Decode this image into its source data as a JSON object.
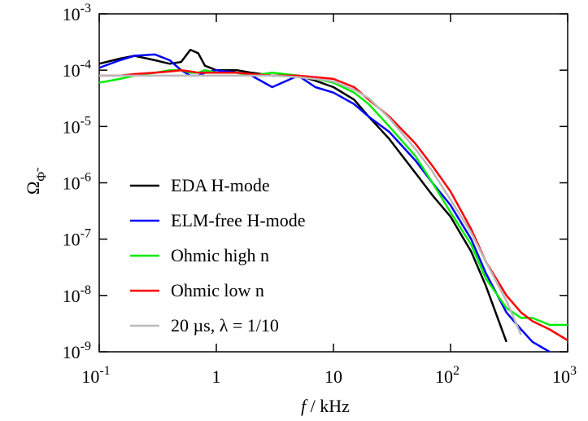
{
  "chart_data": {
    "type": "line",
    "xlabel": {
      "symbol": "f",
      "unit": " / kHz"
    },
    "ylabel": {
      "symbol": "Ω",
      "subscript": "Φ̃"
    },
    "log_x": true,
    "log_y": true,
    "xlim": [
      0.1,
      1000
    ],
    "ylim": [
      1e-09,
      0.001
    ],
    "xticks": [
      {
        "value": 0.1,
        "label": "10",
        "exponent": "-1"
      },
      1,
      10,
      {
        "value": 100,
        "label": "10",
        "exponent": "2"
      },
      {
        "value": 1000,
        "label": "10",
        "exponent": "3"
      }
    ],
    "yticks": [
      {
        "value": 1e-09,
        "label": "10",
        "exponent": "-9"
      },
      {
        "value": 1e-08,
        "label": "10",
        "exponent": "-8"
      },
      {
        "value": 1e-07,
        "label": "10",
        "exponent": "-7"
      },
      {
        "value": 1e-06,
        "label": "10",
        "exponent": "-6"
      },
      {
        "value": 1e-05,
        "label": "10",
        "exponent": "-5"
      },
      {
        "value": 0.0001,
        "label": "10",
        "exponent": "-4"
      },
      {
        "value": 0.001,
        "label": "10",
        "exponent": "-3"
      }
    ],
    "legend": "lower left",
    "x": [
      0.1,
      0.15,
      0.2,
      0.3,
      0.4,
      0.5,
      0.6,
      0.7,
      0.8,
      1,
      1.5,
      2,
      3,
      5,
      7,
      10,
      15,
      20,
      30,
      50,
      70,
      100,
      150,
      200,
      300,
      400,
      500,
      700,
      1000
    ],
    "series": [
      {
        "name": "EDA H-mode",
        "color": "#000000",
        "values": [
          0.00013,
          0.00016,
          0.00018,
          0.00015,
          0.00013,
          0.00014,
          0.00023,
          0.0002,
          0.00012,
          0.0001,
          0.0001,
          9e-05,
          8e-05,
          8e-05,
          6.5e-05,
          5e-05,
          3e-05,
          1.5e-05,
          6e-06,
          1.5e-06,
          6e-07,
          2.5e-07,
          6e-08,
          1.5e-08,
          1.5e-09,
          null,
          null,
          null,
          null
        ]
      },
      {
        "name": "ELM-free H-mode",
        "color": "#0000ff",
        "values": [
          0.00011,
          0.00015,
          0.00018,
          0.00019,
          0.00015,
          0.0001,
          8e-05,
          8e-05,
          9e-05,
          0.0001,
          9e-05,
          8e-05,
          5e-05,
          8e-05,
          5e-05,
          4e-05,
          2.5e-05,
          1.5e-05,
          8e-06,
          2.5e-06,
          1e-06,
          4e-07,
          1e-07,
          2.5e-08,
          5e-09,
          2.5e-09,
          1.5e-09,
          1e-09,
          null
        ]
      },
      {
        "name": "Ohmic high n",
        "color": "#00ee00",
        "values": [
          6e-05,
          7e-05,
          8e-05,
          9e-05,
          0.0001,
          0.0001,
          9e-05,
          9e-05,
          0.0001,
          9e-05,
          9e-05,
          8e-05,
          9e-05,
          8e-05,
          7e-05,
          6e-05,
          4e-05,
          2.5e-05,
          1e-05,
          3e-06,
          1e-06,
          3e-07,
          8e-08,
          2e-08,
          6e-09,
          4e-09,
          4e-09,
          3e-09,
          3e-09
        ]
      },
      {
        "name": "Ohmic low n",
        "color": "#ff0000",
        "values": [
          8e-05,
          8e-05,
          8.5e-05,
          9e-05,
          9.5e-05,
          0.0001,
          9.5e-05,
          9e-05,
          9e-05,
          9e-05,
          9e-05,
          8.5e-05,
          8e-05,
          8e-05,
          7.5e-05,
          7e-05,
          5e-05,
          3e-05,
          1.5e-05,
          5e-06,
          2e-06,
          7e-07,
          1.5e-07,
          4e-08,
          1e-08,
          5e-09,
          3.5e-09,
          2.5e-09,
          1.6e-09
        ]
      },
      {
        "name": "20 µs, λ = 1/10",
        "color": "#bbbbbb",
        "values": [
          8e-05,
          8e-05,
          8e-05,
          8e-05,
          8e-05,
          8e-05,
          8e-05,
          8e-05,
          8e-05,
          8e-05,
          8e-05,
          8e-05,
          8e-05,
          7.5e-05,
          7e-05,
          6.3e-05,
          4.5e-05,
          3.2e-05,
          1.4e-05,
          4e-06,
          1.6e-06,
          5e-07,
          1.3e-07,
          4e-08,
          8e-09,
          2e-09,
          null,
          null,
          null
        ]
      }
    ]
  }
}
